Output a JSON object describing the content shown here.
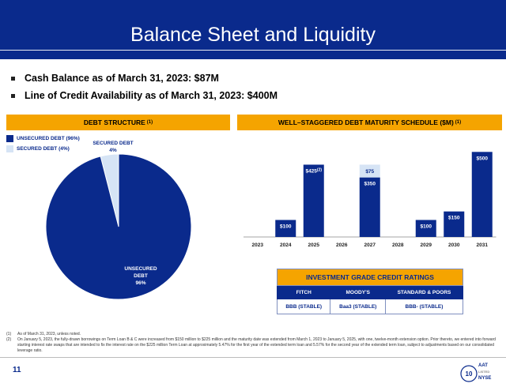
{
  "title": "Balance Sheet and Liquidity",
  "bullets": [
    "Cash Balance as of March 31, 2023:  $87M",
    "Line of Credit Availability as of March 31, 2023:  $400M"
  ],
  "debt_structure": {
    "header": "DEBT STRUCTURE",
    "header_note": "(1)",
    "legend": [
      {
        "label": "UNSECURED DEBT (96%)",
        "color": "#0a2a8c"
      },
      {
        "label": "SECURED DEBT (4%)",
        "color": "#d6e4f5"
      }
    ],
    "secured_label": [
      "SECURED DEBT",
      "4%"
    ],
    "unsecured_label": [
      "UNSECURED",
      "DEBT",
      "96%"
    ]
  },
  "maturity": {
    "header": "WELL–STAGGERED DEBT MATURITY SCHEDULE ($M)",
    "header_note": "(1)"
  },
  "chart_data": [
    {
      "type": "pie",
      "labels": [
        "Unsecured Debt",
        "Secured Debt"
      ],
      "values": [
        96,
        4
      ],
      "colors": [
        "#0a2a8c",
        "#d6e4f5"
      ]
    },
    {
      "type": "bar",
      "categories": [
        "2023",
        "2024",
        "2025",
        "2026",
        "2027",
        "2028",
        "2029",
        "2030",
        "2031"
      ],
      "series": [
        {
          "values": [
            0,
            100,
            425,
            0,
            350,
            0,
            100,
            150,
            500
          ],
          "color": "#0a2a8c"
        },
        {
          "values": [
            0,
            0,
            0,
            0,
            75,
            0,
            0,
            0,
            0
          ],
          "color": "#d6e4f5"
        }
      ],
      "data_labels": [
        "",
        "$100",
        "$425",
        "",
        "$350",
        "",
        "$100",
        "$150",
        "$500"
      ],
      "label_notes": [
        "",
        "",
        "(2)",
        "",
        "",
        "",
        "",
        "",
        ""
      ],
      "stack_labels": [
        "",
        "",
        "",
        "",
        "$75",
        "",
        "",
        "",
        ""
      ],
      "ylim": [
        0,
        520
      ]
    }
  ],
  "ratings": {
    "header": "INVESTMENT GRADE CREDIT RATINGS",
    "columns": [
      "FITCH",
      "MOODY'S",
      "STANDARD & POORS"
    ],
    "values": [
      "BBB (STABLE)",
      "Baa3 (STABLE)",
      "BBB- (STABLE)"
    ]
  },
  "footnotes": [
    {
      "n": "(1)",
      "text": "As of March 31, 2023, unless noted."
    },
    {
      "n": "(2)",
      "text": "On January 5, 2023, the fully-drawn borrowings on Term Loan B & C were increased from $150 million to $225 million and the maturity date was extended from March 1, 2023 to January 5, 2025, with one, twelve-month extension option. Prior thereto, we entered into forward starting interest rate swaps that are intended to fix the interest rate on the $225 million Term Loan at approximately 5.47% for the first year of the extended term loan and 5.57% for the second year of the extended term loan, subject to adjustments based on our consolidated leverage ratio."
    }
  ],
  "page_number": "11",
  "logo": {
    "lines": [
      "AAT",
      "LISTED",
      "NYSE"
    ],
    "badge": "10"
  }
}
